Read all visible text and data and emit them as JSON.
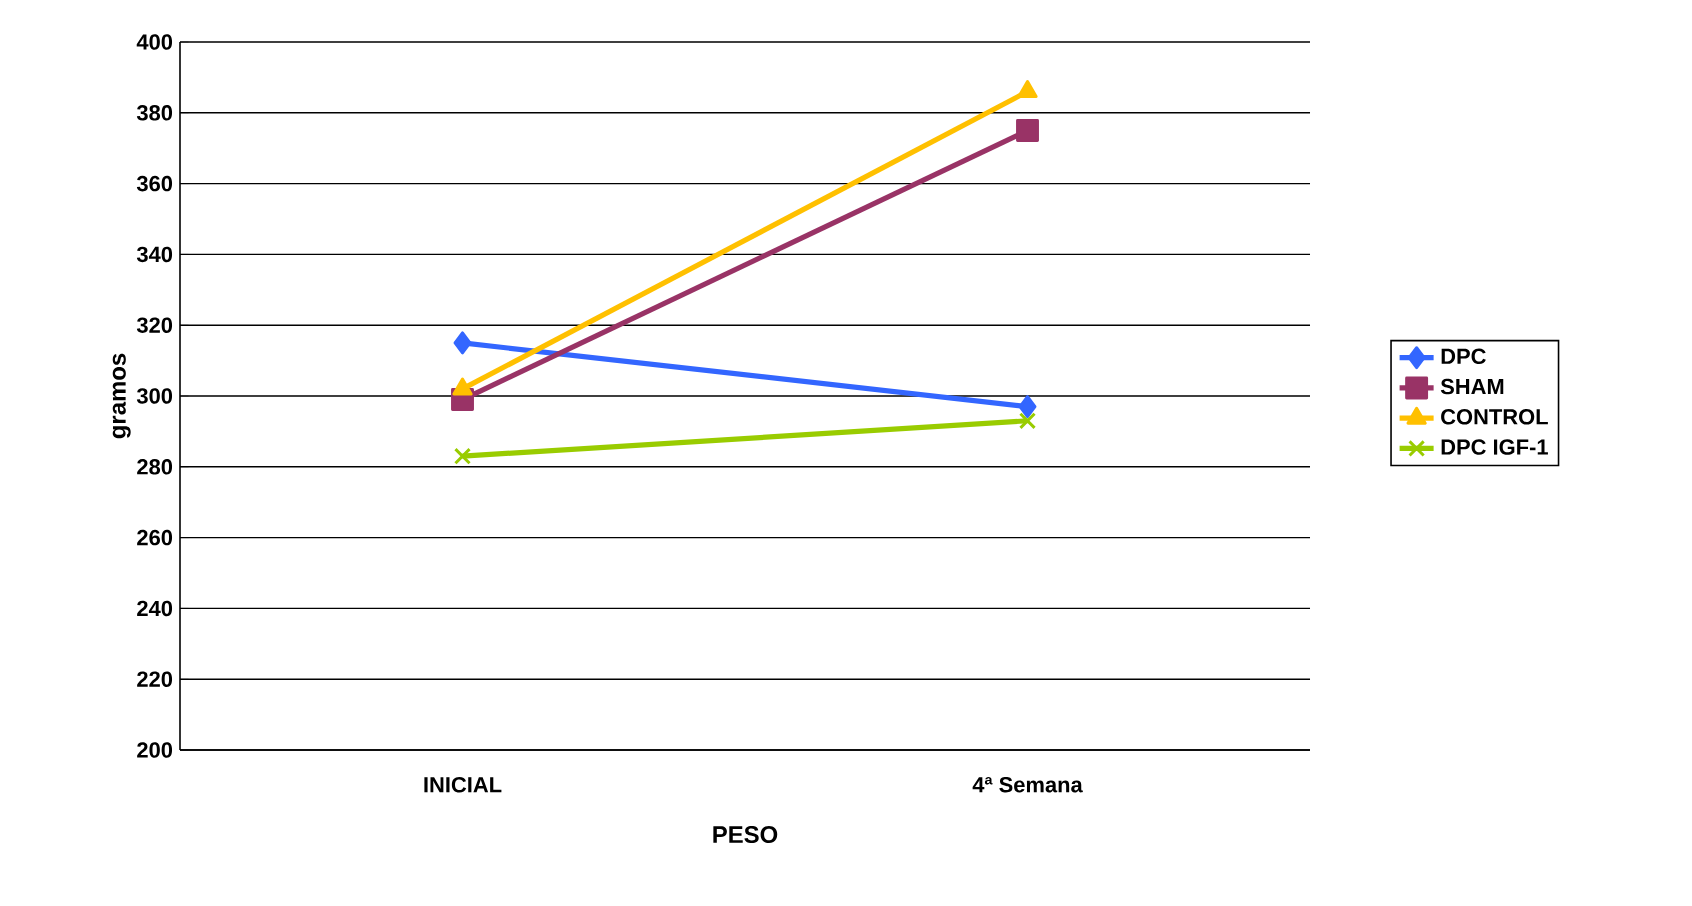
{
  "chart_data": {
    "type": "line",
    "xlabel": "PESO",
    "ylabel": "gramos",
    "categories": [
      "INICIAL",
      "4ª Semana"
    ],
    "series": [
      {
        "name": "DPC",
        "color": "#3366ff",
        "marker": "diamond",
        "values": [
          315,
          297
        ]
      },
      {
        "name": "SHAM",
        "color": "#993366",
        "marker": "square",
        "values": [
          299,
          375
        ]
      },
      {
        "name": "CONTROL",
        "color": "#ffc000",
        "marker": "triangle",
        "values": [
          302,
          386
        ]
      },
      {
        "name": "DPC IGF-1",
        "color": "#99cc00",
        "marker": "cross",
        "values": [
          283,
          293
        ]
      }
    ],
    "ylim": [
      200,
      400
    ],
    "yticks": [
      200,
      220,
      240,
      260,
      280,
      300,
      320,
      340,
      360,
      380,
      400
    ],
    "grid": "y",
    "legend": "right",
    "line_style": "solid"
  }
}
